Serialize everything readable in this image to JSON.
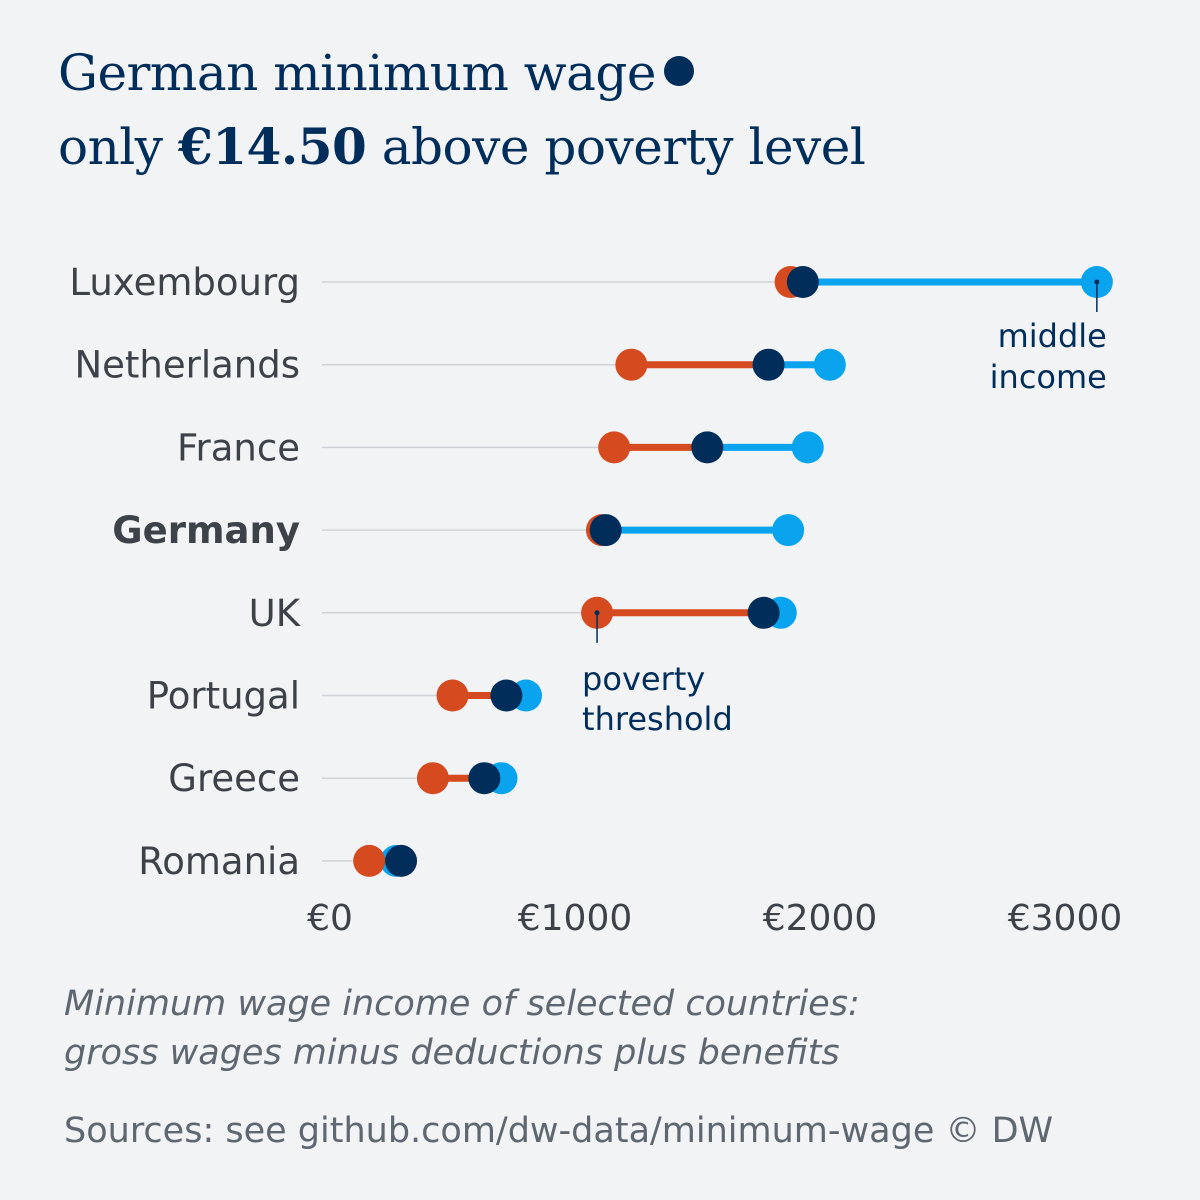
{
  "title": {
    "line1": "German minimum wage",
    "line2_prefix": "only",
    "line2_highlight": "€14.50",
    "line2_suffix": "above poverty level"
  },
  "subtitle": {
    "line1": "Minimum wage income of selected countries:",
    "line2": "gross wages minus deductions plus benefits"
  },
  "source_note": "Sources: see github.com/dw-data/minimum-wage  © DW",
  "colors": {
    "poverty_threshold": "#d64a1f",
    "minimum_wage": "#002d5a",
    "middle_income": "#0aa3ee",
    "gridline": "#cfd3d7",
    "label": "#3d4249",
    "background": "#f1f3f5"
  },
  "chart_data": {
    "type": "dot-range",
    "categories": [
      "Luxembourg",
      "Netherlands",
      "France",
      "Germany",
      "UK",
      "Portugal",
      "Greece",
      "Romania"
    ],
    "highlight_category": "Germany",
    "series": [
      {
        "key": "poverty",
        "values": [
          1880,
          1230,
          1160,
          1110,
          1090,
          500,
          420,
          160
        ]
      },
      {
        "key": "wage",
        "values": [
          1930,
          1790,
          1540,
          1125,
          1770,
          720,
          630,
          290
        ]
      },
      {
        "key": "middle",
        "values": [
          3130,
          2040,
          1950,
          1870,
          1840,
          800,
          700,
          270
        ]
      }
    ],
    "xlim": [
      0,
      3200
    ],
    "x_ticks": [
      {
        "value": 0,
        "label": "€0"
      },
      {
        "value": 1000,
        "label": "€1000"
      },
      {
        "value": 2000,
        "label": "€2000"
      },
      {
        "value": 3000,
        "label": "€3000"
      }
    ],
    "annotations": [
      {
        "text_line1": "middle",
        "text_line2": "income",
        "category": "Luxembourg",
        "series": "middle"
      },
      {
        "text_line1": "poverty",
        "text_line2": "threshold",
        "category": "UK",
        "series": "poverty"
      }
    ]
  }
}
